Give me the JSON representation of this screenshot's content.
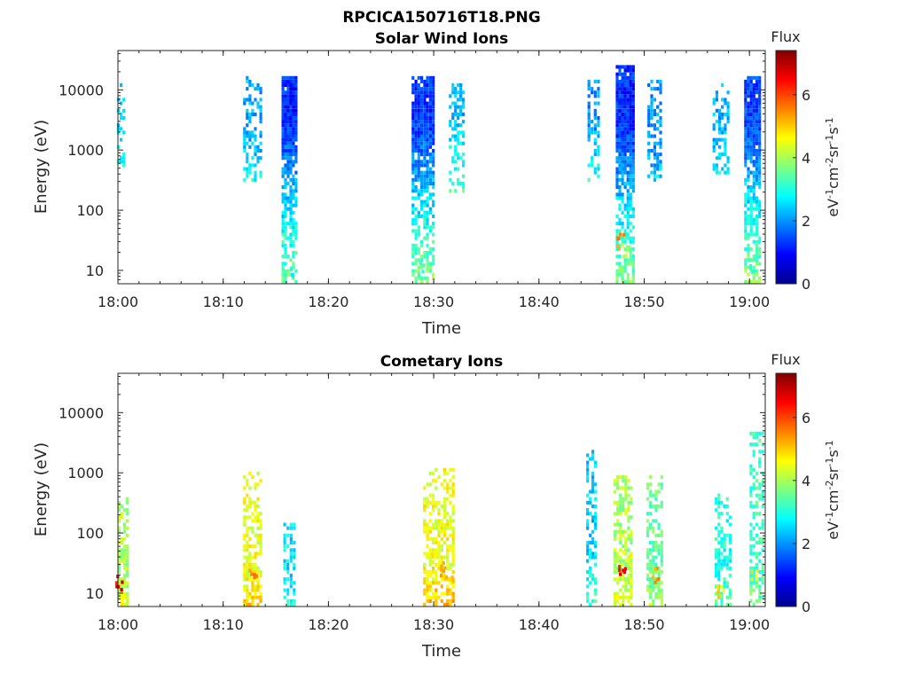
{
  "figure_title": "RPCICA150716T18.PNG",
  "chart_data": [
    {
      "type": "heatmap",
      "title": "Solar Wind Ions",
      "xlabel": "Time",
      "ylabel": "Energy (eV)",
      "yscale": "log",
      "xlim": [
        "18:00",
        "19:01:30"
      ],
      "ylim": [
        6,
        45000
      ],
      "x_ticks": [
        "18:00",
        "18:10",
        "18:20",
        "18:30",
        "18:40",
        "18:50",
        "19:00"
      ],
      "y_ticks": [
        "10",
        "100",
        "1000",
        "10000"
      ],
      "colorbar": {
        "title": "Flux",
        "label": "eV-1cm-2sr-1s-1",
        "label_parts": [
          {
            "t": "eV",
            "sup": false
          },
          {
            "t": "-1",
            "sup": true
          },
          {
            "t": "cm",
            "sup": false
          },
          {
            "t": "-2",
            "sup": true
          },
          {
            "t": "sr",
            "sup": false
          },
          {
            "t": "-1",
            "sup": true
          },
          {
            "t": "s",
            "sup": false
          },
          {
            "t": "-1",
            "sup": true
          }
        ],
        "range": [
          0,
          7.4
        ],
        "ticks": [
          "0",
          "2",
          "4",
          "6"
        ],
        "colormap": "jet"
      },
      "grid": false,
      "bursts": [
        {
          "t_min": 0.3,
          "e_low": 500,
          "e_high": 13000,
          "peak_e": 1500,
          "flux": 2.5,
          "width_min": 0.8,
          "density": 0.35
        },
        {
          "t_min": 12.8,
          "e_low": 300,
          "e_high": 17000,
          "peak_e": 1500,
          "flux": 2.2,
          "width_min": 1.8,
          "density": 0.45
        },
        {
          "t_min": 16.3,
          "e_low": 6,
          "e_high": 18000,
          "peak_e": 3000,
          "flux": 1.2,
          "width_min": 1.5,
          "density": 0.85
        },
        {
          "t_min": 29.0,
          "e_low": 6,
          "e_high": 17000,
          "peak_e": 3000,
          "flux": 1.3,
          "width_min": 2.2,
          "density": 0.85
        },
        {
          "t_min": 32.2,
          "e_low": 200,
          "e_high": 13000,
          "peak_e": 4000,
          "flux": 2.2,
          "width_min": 1.5,
          "density": 0.45
        },
        {
          "t_min": 45.2,
          "e_low": 300,
          "e_high": 15000,
          "peak_e": 3000,
          "flux": 2.0,
          "width_min": 1.2,
          "density": 0.5
        },
        {
          "t_min": 48.2,
          "e_low": 6,
          "e_high": 27000,
          "peak_e": 3000,
          "flux": 1.2,
          "width_min": 1.8,
          "density": 0.9
        },
        {
          "t_min": 51.0,
          "e_low": 300,
          "e_high": 14000,
          "peak_e": 1000,
          "flux": 2.0,
          "width_min": 1.4,
          "density": 0.5
        },
        {
          "t_min": 57.3,
          "e_low": 400,
          "e_high": 15000,
          "peak_e": 2000,
          "flux": 2.2,
          "width_min": 1.6,
          "density": 0.45
        },
        {
          "t_min": 60.3,
          "e_low": 6,
          "e_high": 18000,
          "peak_e": 3000,
          "flux": 1.4,
          "width_min": 1.6,
          "density": 0.85
        }
      ],
      "hotspots": [
        {
          "t_min": 47.8,
          "energy": 30,
          "flux": 5.8
        },
        {
          "t_min": 48.3,
          "energy": 20,
          "flux": 4.5
        },
        {
          "t_min": 16.3,
          "energy": 10,
          "flux": 3.4
        },
        {
          "t_min": 29.0,
          "energy": 10,
          "flux": 3.6
        },
        {
          "t_min": 60.5,
          "energy": 12,
          "flux": 3.6
        }
      ]
    },
    {
      "type": "heatmap",
      "title": "Cometary Ions",
      "xlabel": "Time",
      "ylabel": "Energy (eV)",
      "yscale": "log",
      "xlim": [
        "18:00",
        "19:01:30"
      ],
      "ylim": [
        6,
        45000
      ],
      "x_ticks": [
        "18:00",
        "18:10",
        "18:20",
        "18:30",
        "18:40",
        "18:50",
        "19:00"
      ],
      "y_ticks": [
        "10",
        "100",
        "1000",
        "10000"
      ],
      "colorbar": {
        "title": "Flux",
        "label": "eV-1cm-2sr-1s-1",
        "label_parts": [
          {
            "t": "eV",
            "sup": false
          },
          {
            "t": "-1",
            "sup": true
          },
          {
            "t": "cm",
            "sup": false
          },
          {
            "t": "-2",
            "sup": true
          },
          {
            "t": "sr",
            "sup": false
          },
          {
            "t": "-1",
            "sup": true
          },
          {
            "t": "s",
            "sup": false
          },
          {
            "t": "-1",
            "sup": true
          }
        ],
        "range": [
          0,
          7.4
        ],
        "ticks": [
          "0",
          "2",
          "4",
          "6"
        ],
        "colormap": "jet"
      },
      "grid": false,
      "bursts": [
        {
          "t_min": 0.5,
          "e_low": 6,
          "e_high": 400,
          "peak_e": 20,
          "flux": 4.0,
          "width_min": 1.0,
          "density": 0.6
        },
        {
          "t_min": 12.8,
          "e_low": 6,
          "e_high": 1000,
          "peak_e": 20,
          "flux": 4.5,
          "width_min": 1.8,
          "density": 0.55
        },
        {
          "t_min": 16.3,
          "e_low": 6,
          "e_high": 150,
          "peak_e": 20,
          "flux": 2.6,
          "width_min": 1.2,
          "density": 0.5
        },
        {
          "t_min": 30.5,
          "e_low": 6,
          "e_high": 1200,
          "peak_e": 30,
          "flux": 4.5,
          "width_min": 3.0,
          "density": 0.55
        },
        {
          "t_min": 45.0,
          "e_low": 6,
          "e_high": 2500,
          "peak_e": 60,
          "flux": 2.4,
          "width_min": 1.0,
          "density": 0.45
        },
        {
          "t_min": 48.0,
          "e_low": 6,
          "e_high": 900,
          "peak_e": 25,
          "flux": 4.0,
          "width_min": 1.8,
          "density": 0.6
        },
        {
          "t_min": 51.0,
          "e_low": 6,
          "e_high": 900,
          "peak_e": 20,
          "flux": 3.5,
          "width_min": 1.6,
          "density": 0.55
        },
        {
          "t_min": 57.5,
          "e_low": 6,
          "e_high": 450,
          "peak_e": 20,
          "flux": 3.0,
          "width_min": 1.6,
          "density": 0.45
        },
        {
          "t_min": 60.7,
          "e_low": 6,
          "e_high": 5000,
          "peak_e": 20,
          "flux": 3.2,
          "width_min": 1.4,
          "density": 0.5
        }
      ],
      "hotspots": [
        {
          "t_min": 0.2,
          "energy": 15,
          "flux": 7.0
        },
        {
          "t_min": 12.8,
          "energy": 20,
          "flux": 5.8
        },
        {
          "t_min": 30.2,
          "energy": 40,
          "flux": 5.0
        },
        {
          "t_min": 31.0,
          "energy": 25,
          "flux": 5.4
        },
        {
          "t_min": 31.6,
          "energy": 15,
          "flux": 5.6
        },
        {
          "t_min": 47.9,
          "energy": 25,
          "flux": 7.0
        },
        {
          "t_min": 48.4,
          "energy": 40,
          "flux": 5.2
        },
        {
          "t_min": 51.0,
          "energy": 20,
          "flux": 5.8
        },
        {
          "t_min": 57.3,
          "energy": 10,
          "flux": 5.2
        },
        {
          "t_min": 60.5,
          "energy": 18,
          "flux": 5.0
        }
      ]
    }
  ]
}
